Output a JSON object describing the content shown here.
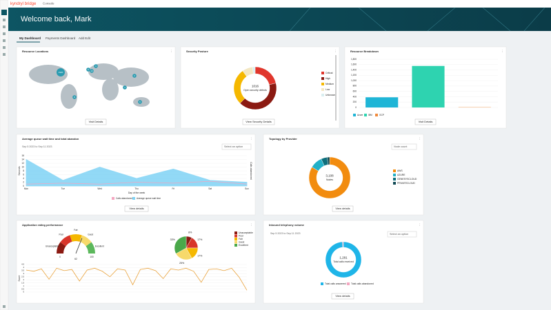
{
  "topbar": {
    "brand": "kyndryl bridge",
    "section": "Console"
  },
  "banner": {
    "greeting": "Welcome back, Mark"
  },
  "tabs": [
    "My Dashboard",
    "Payments Dashboard",
    "Add Edit"
  ],
  "resource_locations": {
    "title": "Resource Locations",
    "markers": [
      "1920",
      "5",
      "3",
      "8",
      "4",
      "2",
      "6",
      "13"
    ],
    "button": "Visit Details"
  },
  "security_posture": {
    "title": "Security Posture",
    "chart": {
      "type": "donut",
      "center_value": "1016",
      "center_label": "Open security defects",
      "categories": [
        "Critical",
        "High",
        "Medium",
        "Low",
        "Unknown"
      ],
      "values": [
        215,
        420,
        280,
        81,
        20
      ],
      "colors": [
        "#e0362c",
        "#8b1a12",
        "#f5b800",
        "#f3e7c2",
        "#d9eef0"
      ]
    },
    "button": "View Security Details"
  },
  "resource_breakdown": {
    "title": "Resource Breakdown",
    "chart": {
      "type": "bar",
      "categories": [
        "Azure",
        "IBM",
        "GCP"
      ],
      "values": [
        380,
        1550,
        10
      ],
      "colors": [
        "#1fb5d6",
        "#2ed3b0",
        "#f08a3c"
      ],
      "ylim": [
        0,
        1800
      ],
      "yticks": [
        0,
        200,
        400,
        600,
        800,
        {
          "value": 1000,
          "label": "1,000"
        },
        {
          "value": 1200,
          "label": "1,200"
        },
        {
          "value": 1400,
          "label": "1,400"
        },
        {
          "value": 1600,
          "label": "1,600"
        },
        {
          "value": 1800,
          "label": "1,800"
        }
      ]
    },
    "button": "Visit Details"
  },
  "queue": {
    "title": "Average queue wait time and total abandon",
    "subtitle": "Sep 5 2023 to Sep 11 2023",
    "dropdown": "Select an option",
    "chart": {
      "type": "area",
      "categories": [
        "Mon",
        "Tue",
        "Wed",
        "Thu",
        "Fri",
        "Sat",
        "Sun"
      ],
      "series": [
        {
          "name": "Calls abandoned",
          "color": "#f4a6c0",
          "values": [
            1,
            1.5,
            1,
            2,
            1.5,
            2.5,
            1
          ]
        },
        {
          "name": "Average queue wait time",
          "color": "#7fd3f5",
          "values": [
            14,
            3,
            10,
            4,
            9,
            3,
            2
          ]
        }
      ],
      "ylim": [
        0,
        16
      ],
      "yticks": [
        0,
        2,
        4,
        6,
        8,
        10,
        12,
        14,
        16
      ],
      "y_label": "Seconds",
      "y2_label": "Calls abandoned",
      "x_label": "Day of the week"
    },
    "button": "View details"
  },
  "topology": {
    "title": "Topology by Provider",
    "dropdown": "Node count",
    "chart": {
      "type": "donut",
      "center_value": "3,108",
      "center_label": "Nodes",
      "categories": [
        "AWS",
        "AZURE",
        "GENESYSCLOUD",
        "PRIVATECLOUD"
      ],
      "values": [
        2600,
        300,
        150,
        58
      ],
      "colors": [
        "#f28c0f",
        "#22b0c7",
        "#0e6f7c",
        "#114a55"
      ]
    },
    "button": "View details"
  },
  "app_rating": {
    "title": "Application rating performance",
    "gauge": {
      "categories": [
        "Unacceptable",
        "Poor",
        "Fair",
        "Good",
        "Excellent"
      ],
      "colors": [
        "#8b1a12",
        "#d8352a",
        "#f5b800",
        "#f7d96b",
        "#5cb85c"
      ],
      "min": 0,
      "max": 100,
      "value": 62
    },
    "pie": {
      "type": "pie",
      "categories": [
        "Unacceptable",
        "Poor",
        "Fair",
        "Good",
        "Excellent"
      ],
      "values": [
        8,
        17,
        17,
        25,
        33
      ],
      "value_labels": [
        "8%",
        "17%",
        "17%",
        "25%",
        "33%"
      ],
      "colors": [
        "#8b1a12",
        "#d8352a",
        "#f5b800",
        "#f7d96b",
        "#4aa84a"
      ]
    },
    "line": {
      "type": "line",
      "y_label": "Score",
      "ylim": [
        0,
        4.5
      ],
      "yticks": [
        0,
        0.5,
        1,
        1.5,
        2,
        2.5,
        3,
        3.5,
        4,
        4.5
      ],
      "color": "#e9a23b",
      "values": [
        3.6,
        3.4,
        3.8,
        2.1,
        3.9,
        3.5,
        3.7,
        1.8,
        3.6,
        3.9,
        3.4,
        2.5,
        3.8,
        3.6,
        1.2,
        3.7,
        3.9,
        3.5,
        2.2,
        3.8,
        3.6,
        3.9,
        3.4,
        1.6,
        3.7,
        3.8,
        3.5,
        3.9,
        2.4,
        0.3
      ]
    }
  },
  "inbound": {
    "title": "Inbound telephony volume",
    "subtitle": "Sep 5 2023 to Sep 11 2023",
    "dropdown": "Select an option",
    "chart": {
      "type": "donut",
      "center_value": "1,281",
      "center_label": "Total calls received",
      "categories": [
        "Total calls answered",
        "Total calls abandoned"
      ],
      "values": [
        1270,
        11
      ],
      "colors": [
        "#1fb5e8",
        "#f4a6c0"
      ]
    },
    "button": "View details"
  }
}
